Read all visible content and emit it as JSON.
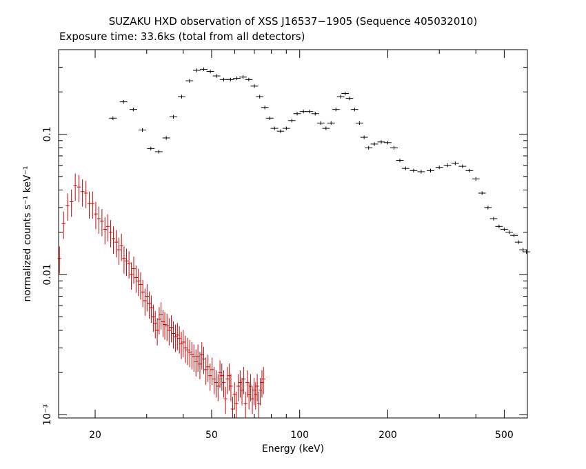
{
  "chart_data": {
    "type": "scatter",
    "title": "SUZAKU HXD observation of XSS J16537−1905 (Sequence 405032010)",
    "subtitle": "Exposure time: 33.6ks (total from all detectors)",
    "xlabel": "Energy (keV)",
    "ylabel": "normalized counts s⁻¹ keV⁻¹",
    "xscale": "log",
    "yscale": "log",
    "xlim": [
      15,
      600
    ],
    "ylim": [
      0.00095,
      0.4
    ],
    "x_ticks": [
      "20",
      "50",
      "100",
      "200",
      "500"
    ],
    "y_ticks": [
      "0.1",
      "0.01",
      "10⁻³"
    ],
    "grid": false,
    "colors": {
      "series_black": "#000000",
      "series_red": "#cc0000"
    },
    "series": [
      {
        "color": "#000000",
        "marker": "crosshair-errorbar",
        "points": [
          [
            23,
            0.13
          ],
          [
            25,
            0.17
          ],
          [
            27,
            0.15
          ],
          [
            29,
            0.107
          ],
          [
            31,
            0.079
          ],
          [
            33,
            0.075
          ],
          [
            35,
            0.094
          ],
          [
            37,
            0.133
          ],
          [
            39.5,
            0.185
          ],
          [
            42,
            0.24
          ],
          [
            44.5,
            0.285
          ],
          [
            47,
            0.29
          ],
          [
            49.5,
            0.28
          ],
          [
            52,
            0.26
          ],
          [
            55,
            0.245
          ],
          [
            58,
            0.245
          ],
          [
            61,
            0.25
          ],
          [
            64,
            0.255
          ],
          [
            67,
            0.245
          ],
          [
            70,
            0.22
          ],
          [
            73,
            0.185
          ],
          [
            76,
            0.155
          ],
          [
            79,
            0.13
          ],
          [
            82,
            0.11
          ],
          [
            86,
            0.105
          ],
          [
            90,
            0.11
          ],
          [
            94,
            0.125
          ],
          [
            98,
            0.14
          ],
          [
            103,
            0.145
          ],
          [
            108,
            0.145
          ],
          [
            113,
            0.14
          ],
          [
            118,
            0.12
          ],
          [
            123,
            0.11
          ],
          [
            128,
            0.12
          ],
          [
            133,
            0.15
          ],
          [
            138,
            0.185
          ],
          [
            143,
            0.195
          ],
          [
            148,
            0.18
          ],
          [
            154,
            0.15
          ],
          [
            160,
            0.12
          ],
          [
            166,
            0.095
          ],
          [
            172,
            0.08
          ],
          [
            180,
            0.085
          ],
          [
            190,
            0.088
          ],
          [
            200,
            0.087
          ],
          [
            210,
            0.08
          ],
          [
            220,
            0.065
          ],
          [
            230,
            0.057
          ],
          [
            245,
            0.055
          ],
          [
            260,
            0.054
          ],
          [
            280,
            0.055
          ],
          [
            300,
            0.058
          ],
          [
            320,
            0.06
          ],
          [
            340,
            0.062
          ],
          [
            360,
            0.059
          ],
          [
            380,
            0.055
          ],
          [
            400,
            0.048
          ],
          [
            420,
            0.038
          ],
          [
            440,
            0.03
          ],
          [
            460,
            0.025
          ],
          [
            480,
            0.022
          ],
          [
            500,
            0.021
          ],
          [
            520,
            0.02
          ],
          [
            540,
            0.019
          ],
          [
            560,
            0.017
          ],
          [
            580,
            0.015
          ],
          [
            595,
            0.0145
          ]
        ]
      },
      {
        "color": "#cc0000",
        "marker": "crosshair-errorbar",
        "points": [
          [
            15.1,
            0.013
          ],
          [
            15.6,
            0.023
          ],
          [
            16.1,
            0.031
          ],
          [
            16.6,
            0.033
          ],
          [
            17.1,
            0.043
          ],
          [
            17.6,
            0.042
          ],
          [
            18.1,
            0.039
          ],
          [
            18.6,
            0.038
          ],
          [
            19.1,
            0.032
          ],
          [
            19.6,
            0.032
          ],
          [
            20.1,
            0.027
          ],
          [
            20.6,
            0.025
          ],
          [
            21.1,
            0.024
          ],
          [
            21.6,
            0.021
          ],
          [
            22.1,
            0.022
          ],
          [
            22.6,
            0.02
          ],
          [
            23.1,
            0.018
          ],
          [
            23.6,
            0.017
          ],
          [
            24.1,
            0.015
          ],
          [
            24.6,
            0.016
          ],
          [
            25.1,
            0.013
          ],
          [
            25.6,
            0.0125
          ],
          [
            26.1,
            0.012
          ],
          [
            26.6,
            0.01
          ],
          [
            27.1,
            0.011
          ],
          [
            27.6,
            0.0095
          ],
          [
            28.1,
            0.009
          ],
          [
            28.6,
            0.0085
          ],
          [
            29.1,
            0.0075
          ],
          [
            29.6,
            0.0065
          ],
          [
            30.1,
            0.007
          ],
          [
            30.6,
            0.0062
          ],
          [
            31.1,
            0.0058
          ],
          [
            31.6,
            0.005
          ],
          [
            32.1,
            0.0045
          ],
          [
            32.6,
            0.004
          ],
          [
            33.1,
            0.0048
          ],
          [
            33.6,
            0.0052
          ],
          [
            34.1,
            0.0046
          ],
          [
            34.6,
            0.0044
          ],
          [
            35.2,
            0.0043
          ],
          [
            35.8,
            0.004
          ],
          [
            36.4,
            0.0042
          ],
          [
            37,
            0.0038
          ],
          [
            37.6,
            0.0036
          ],
          [
            38.2,
            0.0037
          ],
          [
            38.8,
            0.0035
          ],
          [
            39.4,
            0.0032
          ],
          [
            40,
            0.0033
          ],
          [
            40.7,
            0.003
          ],
          [
            41.4,
            0.0029
          ],
          [
            42.1,
            0.0028
          ],
          [
            42.8,
            0.0027
          ],
          [
            43.5,
            0.0026
          ],
          [
            44.2,
            0.0024
          ],
          [
            44.9,
            0.0026
          ],
          [
            45.6,
            0.0023
          ],
          [
            46.3,
            0.0027
          ],
          [
            47,
            0.0025
          ],
          [
            47.8,
            0.0021
          ],
          [
            48.6,
            0.0022
          ],
          [
            49.4,
            0.0019
          ],
          [
            50.2,
            0.0021
          ],
          [
            51,
            0.0018
          ],
          [
            51.8,
            0.0017
          ],
          [
            52.6,
            0.0016
          ],
          [
            53.4,
            0.002
          ],
          [
            54.2,
            0.0019
          ],
          [
            55,
            0.0017
          ],
          [
            55.8,
            0.0013
          ],
          [
            56.6,
            0.0018
          ],
          [
            57.4,
            0.0019
          ],
          [
            58.2,
            0.0016
          ],
          [
            59,
            0.0011
          ],
          [
            59.9,
            0.0014
          ],
          [
            60.8,
            0.0012
          ],
          [
            61.7,
            0.0016
          ],
          [
            62.6,
            0.0017
          ],
          [
            63.5,
            0.0015
          ],
          [
            64.4,
            0.0018
          ],
          [
            65.3,
            0.0012
          ],
          [
            66.2,
            0.0017
          ],
          [
            67.1,
            0.0014
          ],
          [
            68,
            0.0016
          ],
          [
            68.9,
            0.0013
          ],
          [
            69.8,
            0.0015
          ],
          [
            70.7,
            0.0014
          ],
          [
            71.6,
            0.0016
          ],
          [
            72.5,
            0.0012
          ],
          [
            73.4,
            0.0015
          ],
          [
            74.3,
            0.0017
          ],
          [
            75.2,
            0.0018
          ]
        ]
      }
    ]
  }
}
